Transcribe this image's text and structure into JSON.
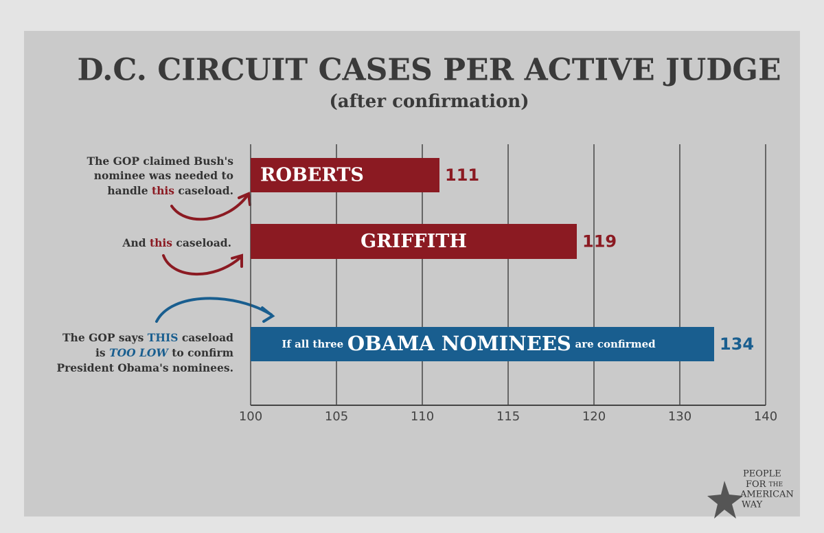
{
  "chart_data": {
    "type": "bar",
    "orientation": "horizontal",
    "title": "D.C. CIRCUIT CASES PER ACTIVE JUDGE",
    "subtitle": "(after confirmation)",
    "categories": [
      "ROBERTS",
      "GRIFFITH",
      "OBAMA NOMINEES"
    ],
    "category_prefix": "If all three",
    "category_suffix": "are confirmed",
    "values": [
      111,
      119,
      134
    ],
    "colors": [
      "#8b1a22",
      "#8b1a22",
      "#195e8f"
    ],
    "xlim": [
      100,
      140
    ],
    "xticks": [
      100,
      105,
      110,
      115,
      120,
      130,
      140
    ],
    "grid": true,
    "annotations": [
      {
        "lines": [
          "The GOP claimed Bush's",
          "nominee was needed to"
        ],
        "pieces": [
          "handle",
          "this",
          "caseload."
        ]
      },
      {
        "pieces": [
          "And",
          "this",
          "caseload."
        ]
      },
      {
        "pieces": [
          "The GOP says",
          "THIS",
          "caseload"
        ],
        "pieces2": [
          "is",
          "TOO LOW",
          "to confirm"
        ],
        "last": "President Obama's nominees."
      }
    ],
    "logo": [
      "PEOPLE",
      "FOR",
      "THE",
      "AMERICAN",
      "WAY"
    ]
  }
}
